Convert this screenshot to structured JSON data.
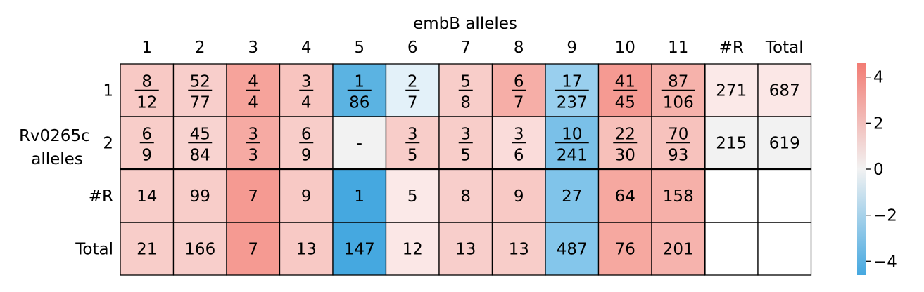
{
  "chart_data": {
    "type": "heatmap",
    "title": "embB alleles",
    "ylabel": "Rv0265c\nalleles",
    "column_labels": [
      "1",
      "2",
      "3",
      "4",
      "5",
      "6",
      "7",
      "8",
      "9",
      "10",
      "11",
      "#R",
      "Total"
    ],
    "row_labels": [
      "1",
      "2",
      "#R",
      "Total"
    ],
    "cells": [
      [
        {
          "num": "8",
          "den": "12",
          "color": "#f8c9c5"
        },
        {
          "num": "52",
          "den": "77",
          "color": "#f8cecb"
        },
        {
          "num": "4",
          "den": "4",
          "color": "#f6a39b"
        },
        {
          "num": "3",
          "den": "4",
          "color": "#f8c4bf"
        },
        {
          "num": "1",
          "den": "86",
          "color": "#5bb3e2"
        },
        {
          "num": "2",
          "den": "7",
          "color": "#e3f1f9"
        },
        {
          "num": "5",
          "den": "8",
          "color": "#f8cdc9"
        },
        {
          "num": "6",
          "den": "7",
          "color": "#f6aea7"
        },
        {
          "num": "17",
          "den": "237",
          "color": "#99cfee"
        },
        {
          "num": "41",
          "den": "45",
          "color": "#f59a92"
        },
        {
          "num": "87",
          "den": "106",
          "color": "#f6b2ab"
        },
        {
          "text": "271",
          "color": "#fbe9e8"
        },
        {
          "text": "687",
          "color": "#fbe7e6"
        }
      ],
      [
        {
          "num": "6",
          "den": "9",
          "color": "#f8cdc9"
        },
        {
          "num": "45",
          "den": "84",
          "color": "#f8d3d0"
        },
        {
          "num": "3",
          "den": "3",
          "color": "#f6aaa3"
        },
        {
          "num": "6",
          "den": "9",
          "color": "#f8cdc9"
        },
        {
          "text": "-",
          "color": "#f2f2f2"
        },
        {
          "num": "3",
          "den": "5",
          "color": "#f8cdc9"
        },
        {
          "num": "3",
          "den": "5",
          "color": "#f8cdc9"
        },
        {
          "num": "3",
          "den": "6",
          "color": "#fadcda"
        },
        {
          "num": "10",
          "den": "241",
          "color": "#7ac0e8"
        },
        {
          "num": "22",
          "den": "30",
          "color": "#f7c0ba"
        },
        {
          "num": "70",
          "den": "93",
          "color": "#f7c2bd"
        },
        {
          "text": "215",
          "color": "#f2f2f2"
        },
        {
          "text": "619",
          "color": "#f2f2f2"
        }
      ],
      [
        {
          "text": "14",
          "color": "#f8cdc9"
        },
        {
          "text": "99",
          "color": "#f8cdc9"
        },
        {
          "text": "7",
          "color": "#f59a92"
        },
        {
          "text": "9",
          "color": "#f8c9c5"
        },
        {
          "text": "1",
          "color": "#45a8e0"
        },
        {
          "text": "5",
          "color": "#fbe9e8"
        },
        {
          "text": "8",
          "color": "#f8cecb"
        },
        {
          "text": "9",
          "color": "#f8c9c5"
        },
        {
          "text": "27",
          "color": "#80c4ea"
        },
        {
          "text": "64",
          "color": "#f6a8a0"
        },
        {
          "text": "158",
          "color": "#f6b0a9"
        },
        {
          "text": "",
          "color": "#ffffff"
        },
        {
          "text": "",
          "color": "#ffffff"
        }
      ],
      [
        {
          "text": "21",
          "color": "#f8cdc9"
        },
        {
          "text": "166",
          "color": "#f8cecb"
        },
        {
          "text": "7",
          "color": "#f59a92"
        },
        {
          "text": "13",
          "color": "#f8c9c5"
        },
        {
          "text": "147",
          "color": "#45a8e0"
        },
        {
          "text": "12",
          "color": "#fbe7e6"
        },
        {
          "text": "13",
          "color": "#f8cecb"
        },
        {
          "text": "13",
          "color": "#f8cdc9"
        },
        {
          "text": "487",
          "color": "#84c6eb"
        },
        {
          "text": "76",
          "color": "#f6a8a0"
        },
        {
          "text": "201",
          "color": "#f6b3ad"
        },
        {
          "text": "",
          "color": "#ffffff"
        },
        {
          "text": "",
          "color": "#ffffff"
        }
      ]
    ],
    "colorbar": {
      "min": -4.6,
      "max": 4.6,
      "ticks": [
        4,
        2,
        0,
        -2,
        -4
      ],
      "tick_labels": [
        "4",
        "2",
        "0",
        "−2",
        "−4"
      ],
      "top_color": "#f27c74",
      "middle_color": "#f2f2f2",
      "bottom_color": "#45a8e0"
    },
    "grid": true,
    "legend": "colorbar-right"
  }
}
